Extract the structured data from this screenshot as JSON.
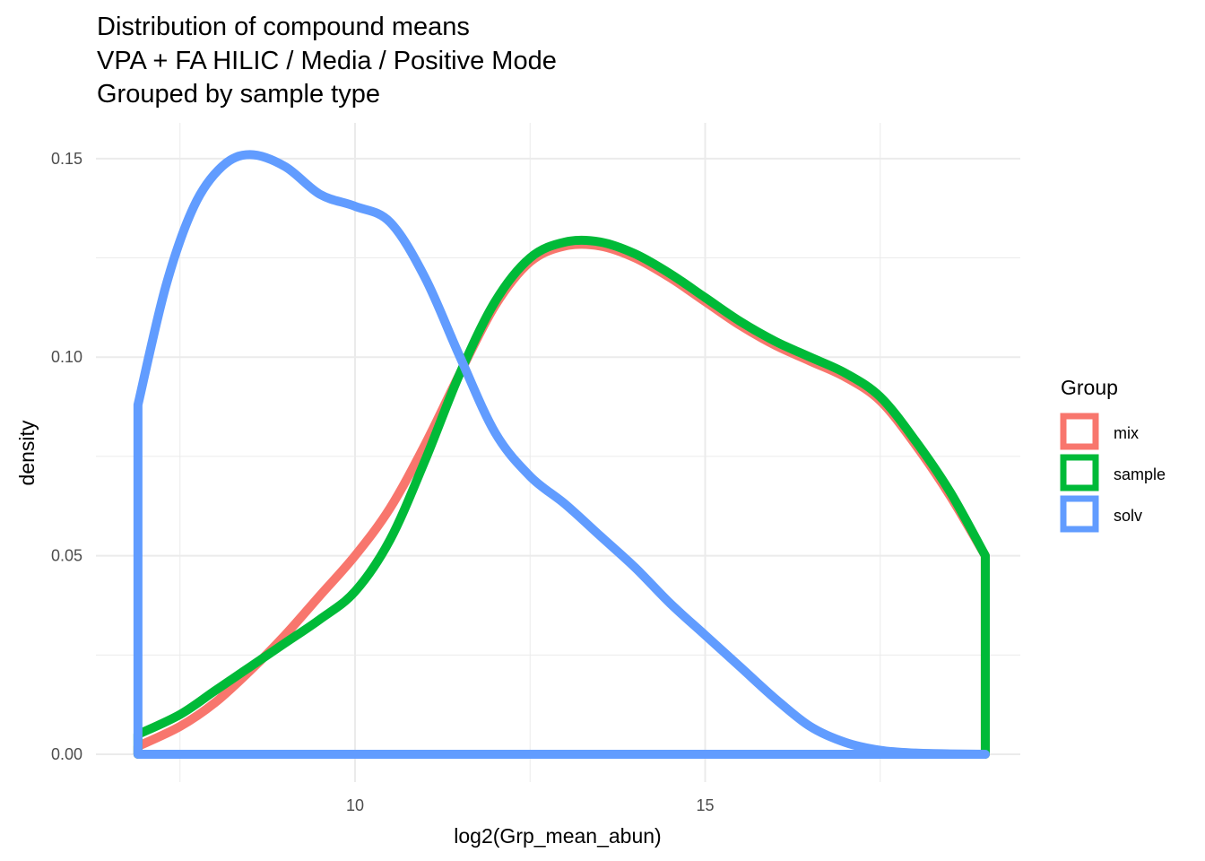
{
  "chart_data": {
    "type": "line",
    "title_lines": [
      "Distribution of compound means",
      "VPA + FA HILIC / Media / Positive Mode",
      "Grouped by sample type"
    ],
    "xlabel": "log2(Grp_mean_abun)",
    "ylabel": "density",
    "xlim": [
      6.3,
      19.5
    ],
    "ylim": [
      -0.007,
      0.159
    ],
    "x_ticks": [
      10,
      15
    ],
    "x_tick_labels": [
      "10",
      "15"
    ],
    "x_minor_ticks": [
      7.5,
      12.5,
      17.5
    ],
    "y_ticks": [
      0,
      0.05,
      0.1,
      0.15
    ],
    "y_tick_labels": [
      "0.00",
      "0.05",
      "0.10",
      "0.15"
    ],
    "y_minor_ticks": [
      0.025,
      0.075,
      0.125
    ],
    "grid": true,
    "legend": {
      "title": "Group",
      "position": "right"
    },
    "series": [
      {
        "name": "mix",
        "color": "#F8766D",
        "x": [
          6.9,
          7.5,
          8,
          8.5,
          9,
          9.5,
          10,
          10.5,
          11,
          11.5,
          12,
          12.5,
          13,
          13.5,
          14,
          14.5,
          15,
          15.5,
          16,
          16.5,
          17,
          17.5,
          18,
          18.5,
          19
        ],
        "y": [
          0.002,
          0.007,
          0.013,
          0.021,
          0.03,
          0.04,
          0.05,
          0.062,
          0.078,
          0.096,
          0.113,
          0.124,
          0.128,
          0.128,
          0.125,
          0.12,
          0.114,
          0.108,
          0.103,
          0.099,
          0.095,
          0.089,
          0.078,
          0.065,
          0.05
        ]
      },
      {
        "name": "sample",
        "color": "#00BA38",
        "x": [
          6.9,
          7.5,
          8,
          8.5,
          9,
          9.5,
          10,
          10.5,
          11,
          11.5,
          12,
          12.5,
          13,
          13.5,
          14,
          14.5,
          15,
          15.5,
          16,
          16.5,
          17,
          17.5,
          18,
          18.5,
          19
        ],
        "y": [
          0.005,
          0.01,
          0.016,
          0.022,
          0.028,
          0.034,
          0.041,
          0.054,
          0.074,
          0.096,
          0.114,
          0.125,
          0.129,
          0.129,
          0.126,
          0.121,
          0.115,
          0.109,
          0.104,
          0.1,
          0.096,
          0.09,
          0.079,
          0.066,
          0.05
        ]
      },
      {
        "name": "solv",
        "color": "#619CFF",
        "x": [
          6.9,
          7.3,
          7.7,
          8.1,
          8.5,
          9,
          9.5,
          10,
          10.5,
          11,
          11.5,
          12,
          12.5,
          13,
          13.5,
          14,
          14.5,
          15,
          15.5,
          16,
          16.5,
          17,
          17.5,
          18,
          18.5,
          19
        ],
        "y": [
          0.088,
          0.118,
          0.138,
          0.148,
          0.151,
          0.148,
          0.141,
          0.138,
          0.134,
          0.12,
          0.1,
          0.081,
          0.07,
          0.063,
          0.055,
          0.047,
          0.038,
          0.03,
          0.022,
          0.014,
          0.007,
          0.003,
          0.001,
          0.0003,
          0.0001,
          0
        ]
      }
    ]
  }
}
